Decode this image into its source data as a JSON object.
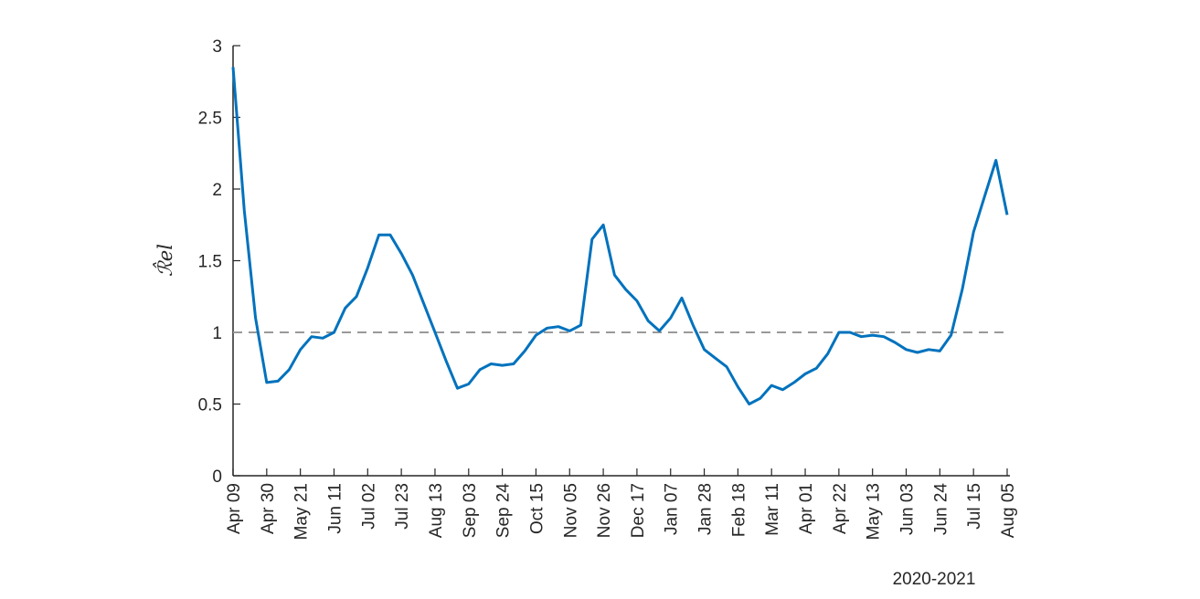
{
  "chart_data": {
    "type": "line",
    "ylabel": "ℛ̂el",
    "xlabel": "2020-2021",
    "color": "#0072bd",
    "reference_line": {
      "value": 1,
      "color": "#999999"
    },
    "x": [
      "Apr 09",
      "Apr 16",
      "Apr 23",
      "Apr 30",
      "May 07",
      "May 14",
      "May 21",
      "May 28",
      "Jun 04",
      "Jun 11",
      "Jun 18",
      "Jun 25",
      "Jul 02",
      "Jul 09",
      "Jul 16",
      "Jul 23",
      "Jul 30",
      "Aug 06",
      "Aug 13",
      "Aug 20",
      "Aug 27",
      "Sep 03",
      "Sep 10",
      "Sep 17",
      "Sep 24",
      "Oct 01",
      "Oct 08",
      "Oct 15",
      "Oct 22",
      "Oct 29",
      "Nov 05",
      "Nov 12",
      "Nov 19",
      "Nov 26",
      "Dec 03",
      "Dec 10",
      "Dec 17",
      "Dec 24",
      "Dec 31",
      "Jan 07",
      "Jan 14",
      "Jan 21",
      "Jan 28",
      "Feb 04",
      "Feb 11",
      "Feb 18",
      "Feb 25",
      "Mar 04",
      "Mar 11",
      "Mar 18",
      "Mar 25",
      "Apr 01",
      "Apr 08",
      "Apr 15",
      "Apr 22",
      "Apr 29",
      "May 06",
      "May 13",
      "May 20",
      "May 27",
      "Jun 03",
      "Jun 10",
      "Jun 17",
      "Jun 24",
      "Jul 01",
      "Jul 08",
      "Jul 15",
      "Jul 22",
      "Jul 29",
      "Aug 05"
    ],
    "values": [
      2.85,
      1.85,
      1.1,
      0.65,
      0.66,
      0.74,
      0.88,
      0.97,
      0.96,
      1.0,
      1.17,
      1.25,
      1.45,
      1.68,
      1.68,
      1.55,
      1.4,
      1.2,
      1.0,
      0.8,
      0.61,
      0.64,
      0.74,
      0.78,
      0.77,
      0.78,
      0.87,
      0.98,
      1.03,
      1.04,
      1.01,
      1.05,
      1.65,
      1.75,
      1.4,
      1.3,
      1.22,
      1.08,
      1.01,
      1.1,
      1.24,
      1.05,
      0.88,
      0.82,
      0.76,
      0.62,
      0.5,
      0.54,
      0.63,
      0.6,
      0.65,
      0.71,
      0.75,
      0.85,
      1.0,
      1.0,
      0.97,
      0.98,
      0.97,
      0.93,
      0.88,
      0.86,
      0.88,
      0.87,
      0.98,
      1.3,
      1.7,
      1.95,
      2.2,
      1.82
    ],
    "xticks": [
      "Apr 09",
      "Apr 30",
      "May 21",
      "Jun 11",
      "Jul 02",
      "Jul 23",
      "Aug 13",
      "Sep 03",
      "Sep 24",
      "Oct 15",
      "Nov 05",
      "Nov 26",
      "Dec 17",
      "Jan 07",
      "Jan 28",
      "Feb 18",
      "Mar 11",
      "Apr 01",
      "Apr 22",
      "May 13",
      "Jun 03",
      "Jun 24",
      "Jul 15",
      "Aug 05"
    ],
    "ylim": [
      0,
      3
    ],
    "yticks": [
      0,
      0.5,
      1,
      1.5,
      2,
      2.5,
      3
    ]
  }
}
